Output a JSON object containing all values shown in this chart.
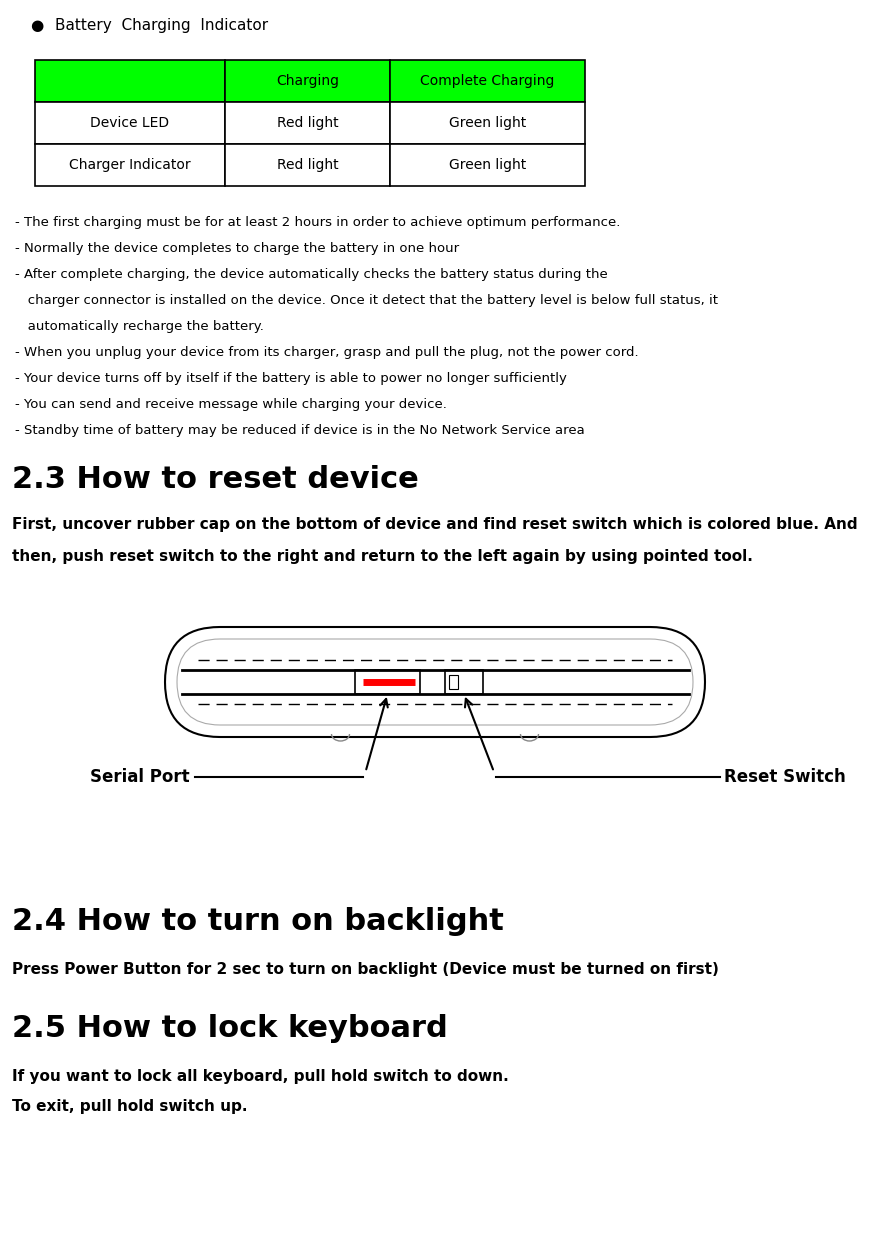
{
  "bg_color": "#ffffff",
  "bullet_title": "Battery  Charging  Indicator",
  "table_header": [
    "",
    "Charging",
    "Complete Charging"
  ],
  "table_rows": [
    [
      "Device LED",
      "Red light",
      "Green light"
    ],
    [
      "Charger Indicator",
      "Red light",
      "Green light"
    ]
  ],
  "header_bg": "#00ff00",
  "bullet_notes": [
    "- The first charging must be for at least 2 hours in order to achieve optimum performance.",
    "- Normally the device completes to charge the battery in one hour",
    "- After complete charging, the device automatically checks the battery status during the",
    "   charger connector is installed on the device. Once it detect that the battery level is below full status, it",
    "   automatically recharge the battery.",
    "- When you unplug your device from its charger, grasp and pull the plug, not the power cord.",
    "- Your device turns off by itself if the battery is able to power no longer sufficiently",
    "- You can send and receive message while charging your device.",
    "- Standby time of battery may be reduced if device is in the No Network Service area"
  ],
  "section_23_title": "2.3 How to reset device",
  "section_23_body_line1": "First, uncover rubber cap on the bottom of device and find reset switch which is colored blue. And",
  "section_23_body_line2": "then, push reset switch to the right and return to the left again by using pointed tool.",
  "section_24_title": "2.4 How to turn on backlight",
  "section_24_body": "Press Power Button for 2 sec to turn on backlight (Device must be turned on first)",
  "section_25_title": "2.5 How to lock keyboard",
  "section_25_body1": "If you want to lock all keyboard, pull hold switch to down.",
  "section_25_body2": "To exit, pull hold switch up.",
  "label_serial": "Serial Port",
  "label_reset": "Reset Switch"
}
